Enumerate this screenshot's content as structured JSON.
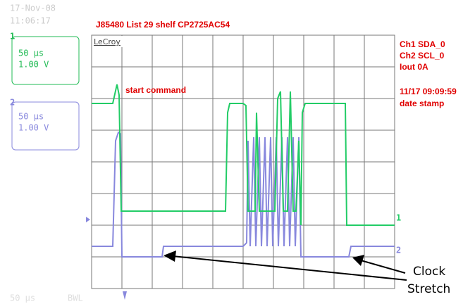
{
  "header": {
    "date": "17-Nov-08",
    "time": "11:06:17",
    "title": "J85480 List 29 shelf CP2725AC54"
  },
  "channels": [
    {
      "number": "1",
      "timebase": "50 µs",
      "scale": "1.00 V"
    },
    {
      "number": "2",
      "timebase": "50 µs",
      "scale": "1.00 V"
    }
  ],
  "screen": {
    "brand": "LeCroy",
    "trace_labels": [
      "1",
      "2"
    ]
  },
  "annotations": {
    "start": "start command",
    "info": [
      "Ch1 SDA_0",
      "Ch2 SCL_0",
      "Iout 0A"
    ],
    "stamp": [
      "11/17 09:09:59",
      "date stamp"
    ],
    "callout": [
      "Clock",
      "Stretch"
    ]
  },
  "footer": {
    "timebase": "50 µs",
    "bwl": "BWL"
  }
}
